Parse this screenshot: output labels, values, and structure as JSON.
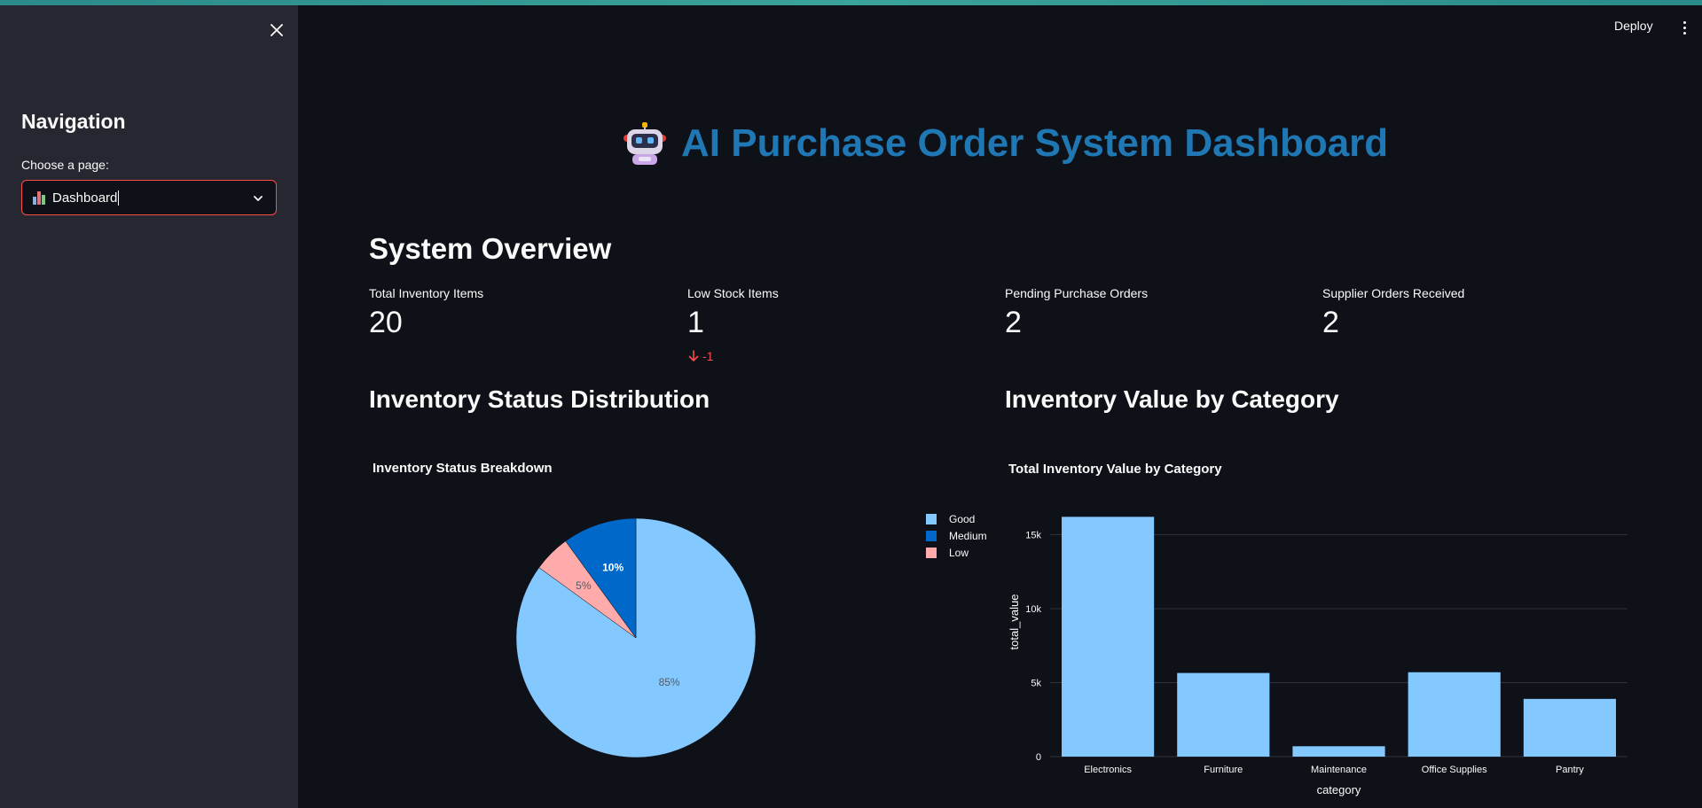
{
  "sidebar": {
    "nav_title": "Navigation",
    "choose_label": "Choose a page:",
    "selected_page": "Dashboard",
    "selected_icon": "bar-chart-icon"
  },
  "header": {
    "deploy_label": "Deploy"
  },
  "page": {
    "title": "AI Purchase Order System Dashboard",
    "title_icon": "robot-icon",
    "title_color": "#1f77b4"
  },
  "overview": {
    "heading": "System Overview",
    "metrics": [
      {
        "label": "Total Inventory Items",
        "value": "20"
      },
      {
        "label": "Low Stock Items",
        "value": "1",
        "delta": "-1",
        "delta_color": "#ff4b4b"
      },
      {
        "label": "Pending Purchase Orders",
        "value": "2"
      },
      {
        "label": "Supplier Orders Received",
        "value": "2"
      }
    ]
  },
  "status_section": {
    "heading": "Inventory Status Distribution"
  },
  "value_section": {
    "heading": "Inventory Value by Category"
  },
  "chart_data": [
    {
      "type": "pie",
      "title": "Inventory Status Breakdown",
      "labels": [
        "Good",
        "Medium",
        "Low"
      ],
      "values": [
        85,
        10,
        5
      ],
      "value_labels": [
        "85%",
        "10%",
        "5%"
      ],
      "colors": [
        "#83c9ff",
        "#0068c9",
        "#ffabab"
      ],
      "legend_position": "top-right"
    },
    {
      "type": "bar",
      "title": "Total Inventory Value by Category",
      "categories": [
        "Electronics",
        "Furniture",
        "Maintenance",
        "Office Supplies",
        "Pantry"
      ],
      "values": [
        16200,
        5650,
        700,
        5700,
        3900
      ],
      "xlabel": "category",
      "ylabel": "total_value",
      "ylim": [
        0,
        17000
      ],
      "yticks": [
        0,
        5000,
        10000,
        15000
      ],
      "ytick_labels": [
        "0",
        "5k",
        "10k",
        "15k"
      ],
      "color": "#83c9ff",
      "grid": true
    }
  ]
}
